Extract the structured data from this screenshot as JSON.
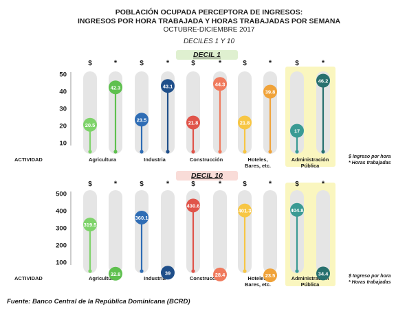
{
  "title": {
    "line1": "POBLACIÓN OCUPADA PERCEPTORA DE INGRESOS:",
    "line2": "INGRESOS POR HORA TRABAJADA Y HORAS TRABAJADAS POR SEMANA",
    "line3": "OCTUBRE-DICIEMBRE 2017",
    "line4": "DECILES 1 Y 10"
  },
  "legend": {
    "dollar": "$ Ingreso por hora",
    "star": "* Horas trabajadas"
  },
  "actividad_label": "ACTIVIDAD",
  "source": "Fuente: Banco Central de la República Dominicana (BCRD)",
  "colors": {
    "agricultura": "#7ed36a",
    "agricultura_dark": "#5fc04f",
    "industria": "#2f6db5",
    "industria_dark": "#1f4f8a",
    "construccion": "#e0544a",
    "construccion_light": "#f07a5d",
    "hoteles": "#f7c644",
    "hoteles_dark": "#f0a33a",
    "admin": "#3a9a94",
    "admin_dark": "#27706f",
    "highlight": "#faf6bf",
    "pill": "#e5e5e5"
  },
  "chart_data": [
    {
      "type": "lollipop",
      "title": "DECIL 1",
      "categories": [
        "Agricultura",
        "Industria",
        "Construcción",
        "Hoteles, Bares, etc.",
        "Administración Pública"
      ],
      "category_lines": [
        [
          "Agricultura"
        ],
        [
          "Industria"
        ],
        [
          "Construcción"
        ],
        [
          "Hoteles,",
          "Bares, etc."
        ],
        [
          "Administración",
          "Pública"
        ]
      ],
      "series": [
        {
          "name": "$",
          "values": [
            20.5,
            23.5,
            21.8,
            21.8,
            17
          ]
        },
        {
          "name": "*",
          "values": [
            42.3,
            43.1,
            44.3,
            39.8,
            46.2
          ]
        }
      ],
      "yticks": [
        10,
        20,
        30,
        40,
        50
      ],
      "ylim": [
        5,
        50
      ],
      "highlight_category": "Administración Pública"
    },
    {
      "type": "lollipop",
      "title": "DECIL 10",
      "categories": [
        "Agricultura",
        "Industria",
        "Construcción",
        "Hoteles, Bares, etc.",
        "Administración Pública"
      ],
      "category_lines": [
        [
          "Agricultura"
        ],
        [
          "Industria"
        ],
        [
          "Construcción"
        ],
        [
          "Hoteles,",
          "Bares, etc."
        ],
        [
          "Administración",
          "Pública"
        ]
      ],
      "series": [
        {
          "name": "$",
          "values": [
            319.5,
            360.1,
            430.6,
            401.3,
            404.8
          ]
        },
        {
          "name": "*",
          "values": [
            32.8,
            39,
            28.4,
            23.5,
            34.4
          ]
        }
      ],
      "yticks": [
        100,
        200,
        300,
        400,
        500
      ],
      "ylim": [
        60,
        500
      ],
      "highlight_category": "Administración Pública"
    }
  ]
}
